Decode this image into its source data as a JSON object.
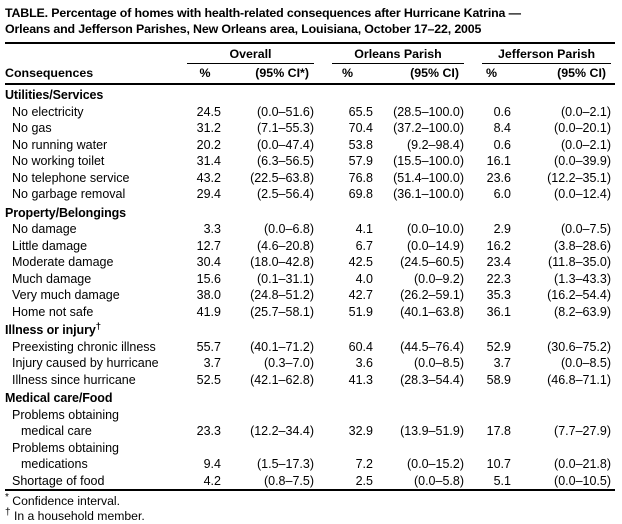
{
  "colors": {
    "text": "#000000",
    "background": "#ffffff",
    "rule": "#000000"
  },
  "title": {
    "line1": "TABLE. Percentage of homes with health-related consequences after Hurricane Katrina —",
    "line2": "Orleans and Jefferson Parishes, New Orleans area, Louisiana, October 17–22, 2005"
  },
  "header": {
    "consequences_label": "Consequences",
    "groups": [
      {
        "label": "Overall",
        "pct": "%",
        "ci": "(95% CI*)"
      },
      {
        "label": "Orleans Parish",
        "pct": "%",
        "ci": "(95% CI)"
      },
      {
        "label": "Jefferson Parish",
        "pct": "%",
        "ci": "(95% CI)"
      }
    ]
  },
  "sections": [
    {
      "label": "Utilities/Services",
      "rows": [
        {
          "label": "No electricity",
          "overall_pct": "24.5",
          "overall_ci": "(0.0–51.6)",
          "orleans_pct": "65.5",
          "orleans_ci": "(28.5–100.0)",
          "jefferson_pct": "0.6",
          "jefferson_ci": "(0.0–2.1)"
        },
        {
          "label": "No gas",
          "overall_pct": "31.2",
          "overall_ci": "(7.1–55.3)",
          "orleans_pct": "70.4",
          "orleans_ci": "(37.2–100.0)",
          "jefferson_pct": "8.4",
          "jefferson_ci": "(0.0–20.1)"
        },
        {
          "label": "No running water",
          "overall_pct": "20.2",
          "overall_ci": "(0.0–47.4)",
          "orleans_pct": "53.8",
          "orleans_ci": "(9.2–98.4)",
          "jefferson_pct": "0.6",
          "jefferson_ci": "(0.0–2.1)"
        },
        {
          "label": "No working toilet",
          "overall_pct": "31.4",
          "overall_ci": "(6.3–56.5)",
          "orleans_pct": "57.9",
          "orleans_ci": "(15.5–100.0)",
          "jefferson_pct": "16.1",
          "jefferson_ci": "(0.0–39.9)"
        },
        {
          "label": "No telephone service",
          "overall_pct": "43.2",
          "overall_ci": "(22.5–63.8)",
          "orleans_pct": "76.8",
          "orleans_ci": "(51.4–100.0)",
          "jefferson_pct": "23.6",
          "jefferson_ci": "(12.2–35.1)"
        },
        {
          "label": "No garbage removal",
          "overall_pct": "29.4",
          "overall_ci": "(2.5–56.4)",
          "orleans_pct": "69.8",
          "orleans_ci": "(36.1–100.0)",
          "jefferson_pct": "6.0",
          "jefferson_ci": "(0.0–12.4)"
        }
      ]
    },
    {
      "label": "Property/Belongings",
      "rows": [
        {
          "label": "No damage",
          "overall_pct": "3.3",
          "overall_ci": "(0.0–6.8)",
          "orleans_pct": "4.1",
          "orleans_ci": "(0.0–10.0)",
          "jefferson_pct": "2.9",
          "jefferson_ci": "(0.0–7.5)"
        },
        {
          "label": "Little damage",
          "overall_pct": "12.7",
          "overall_ci": "(4.6–20.8)",
          "orleans_pct": "6.7",
          "orleans_ci": "(0.0–14.9)",
          "jefferson_pct": "16.2",
          "jefferson_ci": "(3.8–28.6)"
        },
        {
          "label": "Moderate damage",
          "overall_pct": "30.4",
          "overall_ci": "(18.0–42.8)",
          "orleans_pct": "42.5",
          "orleans_ci": "(24.5–60.5)",
          "jefferson_pct": "23.4",
          "jefferson_ci": "(11.8–35.0)"
        },
        {
          "label": "Much damage",
          "overall_pct": "15.6",
          "overall_ci": "(0.1–31.1)",
          "orleans_pct": "4.0",
          "orleans_ci": "(0.0–9.2)",
          "jefferson_pct": "22.3",
          "jefferson_ci": "(1.3–43.3)"
        },
        {
          "label": "Very much damage",
          "overall_pct": "38.0",
          "overall_ci": "(24.8–51.2)",
          "orleans_pct": "42.7",
          "orleans_ci": "(26.2–59.1)",
          "jefferson_pct": "35.3",
          "jefferson_ci": "(16.2–54.4)"
        },
        {
          "label": "Home not safe",
          "overall_pct": "41.9",
          "overall_ci": "(25.7–58.1)",
          "orleans_pct": "51.9",
          "orleans_ci": "(40.1–63.8)",
          "jefferson_pct": "36.1",
          "jefferson_ci": "(8.2–63.9)"
        }
      ]
    },
    {
      "label": "Illness or injury",
      "label_sup": "†",
      "rows": [
        {
          "label": "Preexisting chronic illness",
          "overall_pct": "55.7",
          "overall_ci": "(40.1–71.2)",
          "orleans_pct": "60.4",
          "orleans_ci": "(44.5–76.4)",
          "jefferson_pct": "52.9",
          "jefferson_ci": "(30.6–75.2)"
        },
        {
          "label": "Injury caused by hurricane",
          "overall_pct": "3.7",
          "overall_ci": "(0.3–7.0)",
          "orleans_pct": "3.6",
          "orleans_ci": "(0.0–8.5)",
          "jefferson_pct": "3.7",
          "jefferson_ci": "(0.0–8.5)"
        },
        {
          "label": "Illness since hurricane",
          "overall_pct": "52.5",
          "overall_ci": "(42.1–62.8)",
          "orleans_pct": "41.3",
          "orleans_ci": "(28.3–54.4)",
          "jefferson_pct": "58.9",
          "jefferson_ci": "(46.8–71.1)"
        }
      ]
    },
    {
      "label": "Medical care/Food",
      "rows": [
        {
          "label": "Problems obtaining",
          "label2": "medical care",
          "overall_pct": "23.3",
          "overall_ci": "(12.2–34.4)",
          "orleans_pct": "32.9",
          "orleans_ci": "(13.9–51.9)",
          "jefferson_pct": "17.8",
          "jefferson_ci": "(7.7–27.9)"
        },
        {
          "label": "Problems obtaining",
          "label2": "medications",
          "overall_pct": "9.4",
          "overall_ci": "(1.5–17.3)",
          "orleans_pct": "7.2",
          "orleans_ci": "(0.0–15.2)",
          "jefferson_pct": "10.7",
          "jefferson_ci": "(0.0–21.8)"
        },
        {
          "label": "Shortage of food",
          "overall_pct": "4.2",
          "overall_ci": "(0.8–7.5)",
          "orleans_pct": "2.5",
          "orleans_ci": "(0.0–5.8)",
          "jefferson_pct": "5.1",
          "jefferson_ci": "(0.0–10.5)"
        }
      ]
    }
  ],
  "footnotes": [
    {
      "marker": "*",
      "text": "Confidence interval."
    },
    {
      "marker": "†",
      "text": "In a household member."
    }
  ]
}
